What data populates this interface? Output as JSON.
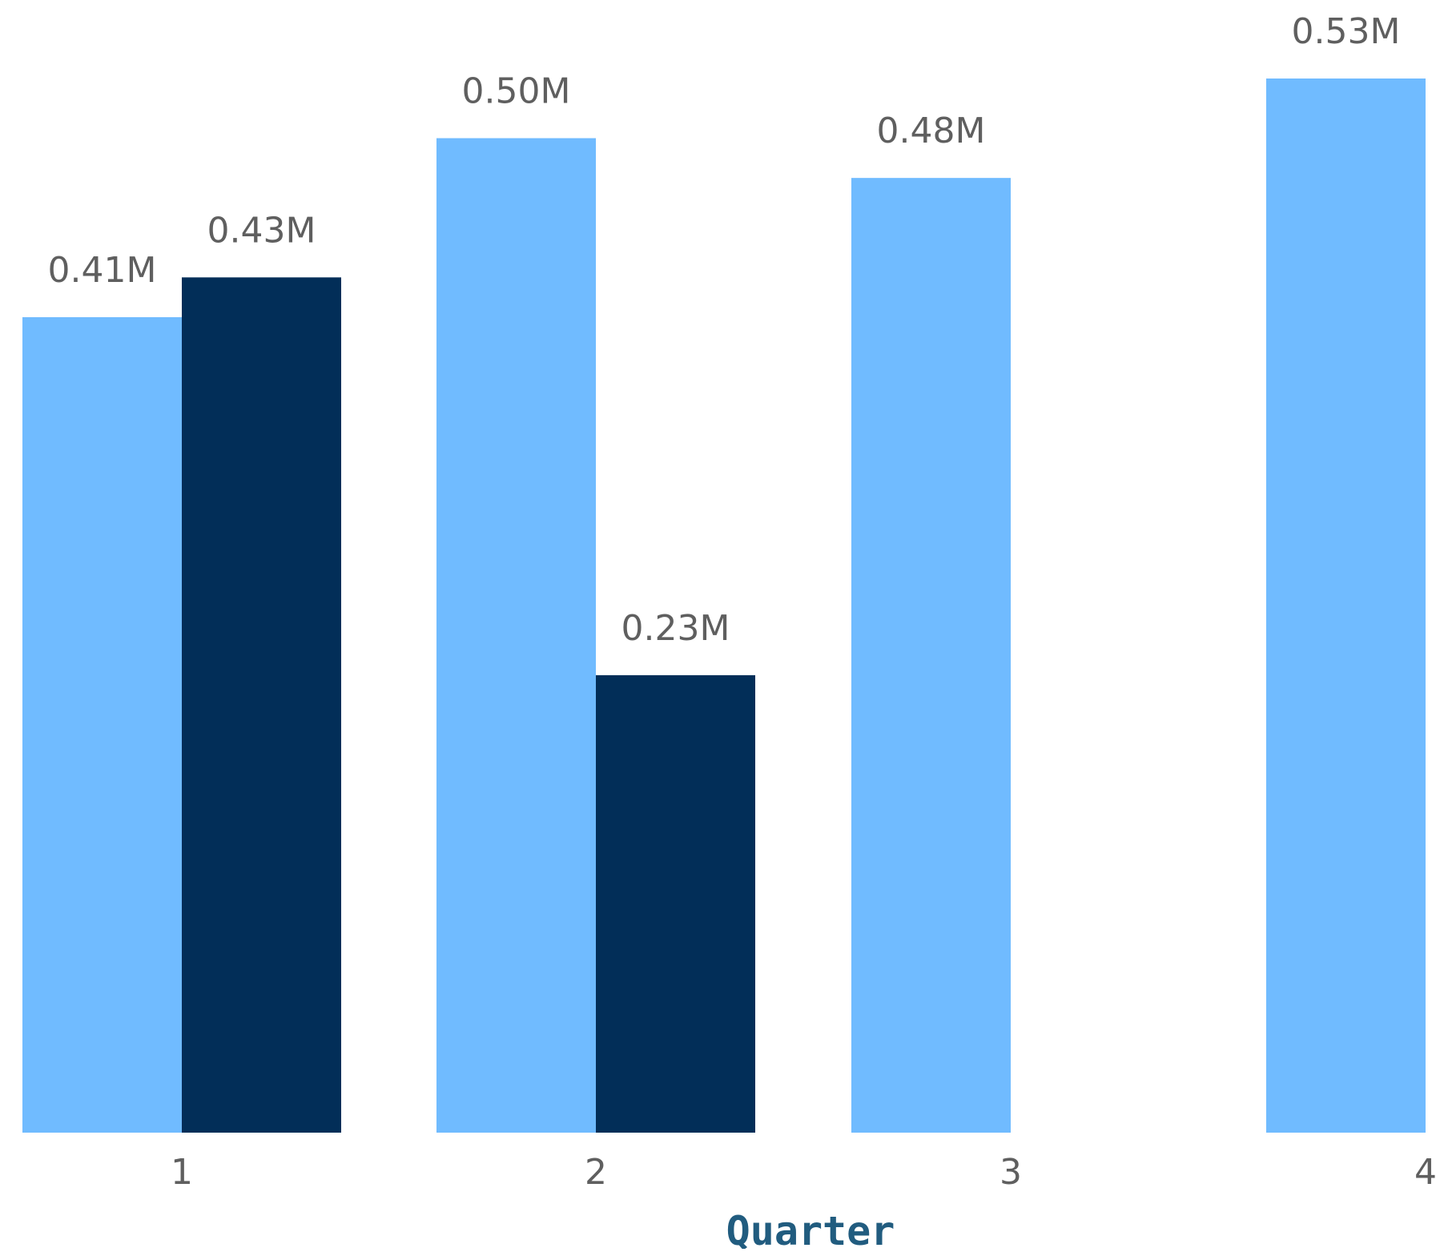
{
  "chart_data": {
    "type": "bar",
    "title": "",
    "xlabel": "Quarter",
    "ylabel": "",
    "categories": [
      "1",
      "2",
      "3",
      "4"
    ],
    "ylim": [
      0,
      0.53
    ],
    "grid": false,
    "legend": "none",
    "series": [
      {
        "color": "#70bbff",
        "values": [
          0.41,
          0.5,
          0.48,
          0.53
        ],
        "labels": [
          "0.41M",
          "0.50M",
          "0.48M",
          "0.53M"
        ]
      },
      {
        "color": "#022e58",
        "values": [
          0.43,
          0.23,
          null,
          null
        ],
        "labels": [
          "0.43M",
          "0.23M",
          "",
          ""
        ]
      }
    ]
  }
}
